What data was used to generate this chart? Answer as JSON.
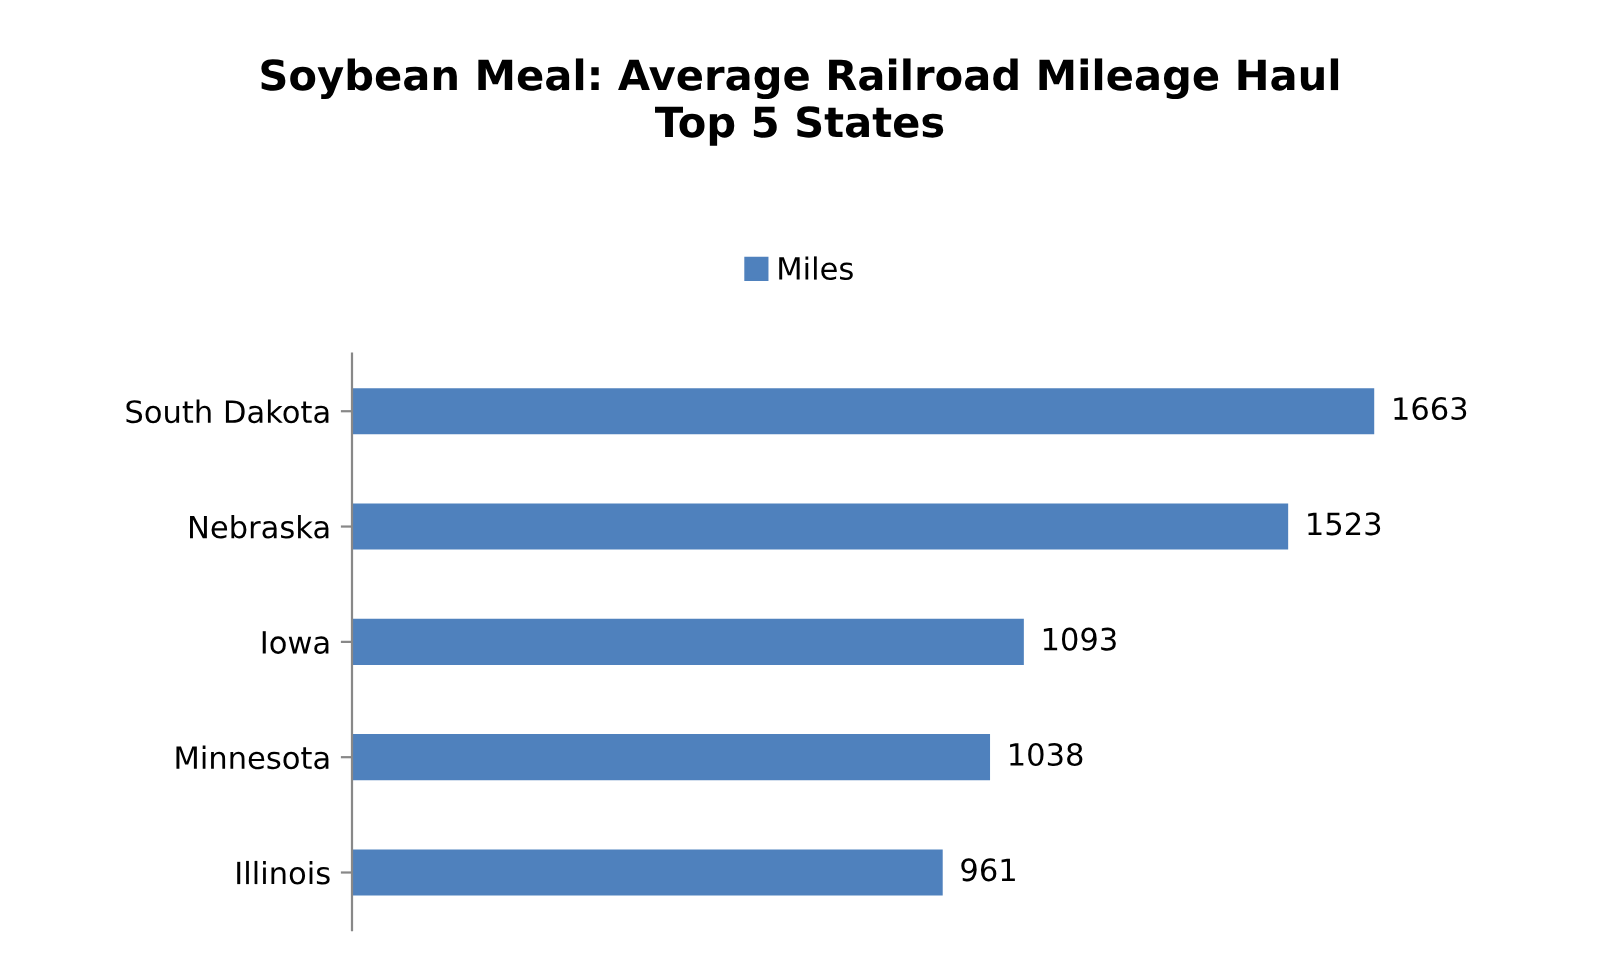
{
  "chart_data": {
    "type": "bar",
    "orientation": "horizontal",
    "title": "Soybean Meal: Average Railroad Mileage Haul\nTop 5 States",
    "categories": [
      "South Dakota",
      "Nebraska",
      "Iowa",
      "Minnesota",
      "Illinois"
    ],
    "series": [
      {
        "name": "Miles",
        "color": "#4f81bd",
        "values": [
          1663,
          1523,
          1093,
          1038,
          961
        ]
      }
    ],
    "data_labels": true,
    "legend": "top",
    "tick_labels": "y",
    "grid": false
  }
}
